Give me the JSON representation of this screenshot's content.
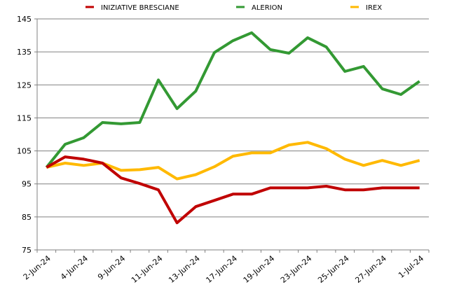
{
  "chart_data": {
    "type": "line",
    "title": "",
    "xlabel": "",
    "ylabel": "",
    "ylim": [
      75,
      145
    ],
    "yticks": [
      75,
      85,
      95,
      105,
      115,
      125,
      135,
      145
    ],
    "grid": true,
    "legend_position": "top",
    "x_tick_labels": [
      "2-Jun-24",
      "4-Jun-24",
      "9-Jun-24",
      "11-Jun-24",
      "13-Jun-24",
      "17-Jun-24",
      "19-Jun-24",
      "23-Jun-24",
      "25-Jun-24",
      "27-Jun-24",
      "1-Jul-24"
    ],
    "point_count": 21,
    "series": [
      {
        "name": "INIZIATIVE BRESCIANE",
        "color": "#C00000",
        "values": [
          100,
          103.2,
          102.5,
          101.3,
          96.8,
          95.1,
          93.2,
          83.2,
          88.1,
          90,
          91.9,
          91.9,
          93.8,
          93.8,
          93.8,
          94.3,
          93.2,
          93.2,
          93.8,
          93.8,
          93.8
        ]
      },
      {
        "name": "ALERION",
        "color": "#339933",
        "values": [
          100,
          107,
          109,
          113.6,
          113.2,
          113.6,
          126.5,
          117.8,
          123.1,
          134.8,
          138.4,
          140.8,
          135.7,
          134.6,
          139.3,
          136.5,
          129.1,
          130.6,
          123.8,
          122.1,
          126.1
        ]
      },
      {
        "name": "IREX",
        "color": "#FFB900",
        "values": [
          100,
          101.3,
          100.6,
          101.3,
          99.1,
          99.3,
          100,
          96.5,
          97.8,
          100.2,
          103.4,
          104.4,
          104.4,
          106.8,
          107.6,
          105.7,
          102.5,
          100.6,
          102.1,
          100.6,
          102.1
        ]
      }
    ]
  }
}
